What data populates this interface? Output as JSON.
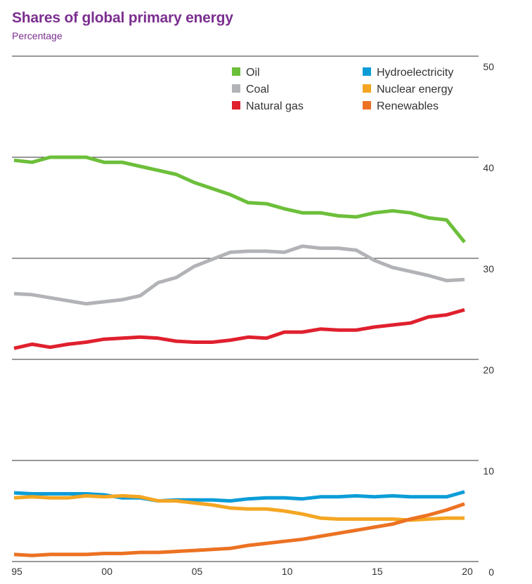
{
  "chart_data": {
    "type": "line",
    "title": "Shares of global primary energy",
    "subtitle": "Percentage",
    "xlabel": "",
    "ylabel": "",
    "ylim": [
      0,
      50
    ],
    "yticks": [
      0,
      10,
      20,
      30,
      40,
      50
    ],
    "xlim": [
      1995,
      2020
    ],
    "xticks": [
      {
        "value": 1995,
        "label": "95"
      },
      {
        "value": 2000,
        "label": "00"
      },
      {
        "value": 2005,
        "label": "05"
      },
      {
        "value": 2010,
        "label": "10"
      },
      {
        "value": 2015,
        "label": "15"
      },
      {
        "value": 2020,
        "label": "20"
      }
    ],
    "legend_position": "top-right",
    "x": [
      1995,
      1996,
      1997,
      1998,
      1999,
      2000,
      2001,
      2002,
      2003,
      2004,
      2005,
      2006,
      2007,
      2008,
      2009,
      2010,
      2011,
      2012,
      2013,
      2014,
      2015,
      2016,
      2017,
      2018,
      2019,
      2020
    ],
    "series": [
      {
        "name": "Oil",
        "color": "#6cbf3a",
        "values": [
          39.7,
          39.5,
          40.0,
          40.0,
          40.0,
          39.5,
          39.5,
          39.1,
          38.7,
          38.3,
          37.5,
          36.9,
          36.3,
          35.5,
          35.4,
          34.9,
          34.5,
          34.5,
          34.2,
          34.1,
          34.5,
          34.7,
          34.5,
          34.0,
          33.8,
          31.6
        ]
      },
      {
        "name": "Coal",
        "color": "#b1b3b6",
        "values": [
          26.5,
          26.4,
          26.1,
          25.8,
          25.5,
          25.7,
          25.9,
          26.3,
          27.6,
          28.1,
          29.2,
          29.9,
          30.6,
          30.7,
          30.7,
          30.6,
          31.2,
          31.0,
          31.0,
          30.8,
          29.8,
          29.1,
          28.7,
          28.3,
          27.8,
          27.9
        ]
      },
      {
        "name": "Natural gas",
        "color": "#e0202e",
        "values": [
          21.1,
          21.5,
          21.2,
          21.5,
          21.7,
          22.0,
          22.1,
          22.2,
          22.1,
          21.8,
          21.7,
          21.7,
          21.9,
          22.2,
          22.1,
          22.7,
          22.7,
          23.0,
          22.9,
          22.9,
          23.2,
          23.4,
          23.6,
          24.2,
          24.4,
          24.9
        ]
      },
      {
        "name": "Hydroelectricity",
        "color": "#0c9dd8",
        "values": [
          6.8,
          6.7,
          6.7,
          6.7,
          6.7,
          6.6,
          6.3,
          6.3,
          6.0,
          6.1,
          6.1,
          6.1,
          6.0,
          6.2,
          6.3,
          6.3,
          6.2,
          6.4,
          6.4,
          6.5,
          6.4,
          6.5,
          6.4,
          6.4,
          6.4,
          6.9
        ]
      },
      {
        "name": "Nuclear energy",
        "color": "#f4a623",
        "values": [
          6.3,
          6.4,
          6.3,
          6.3,
          6.5,
          6.4,
          6.5,
          6.4,
          6.0,
          6.0,
          5.8,
          5.6,
          5.3,
          5.2,
          5.2,
          5.0,
          4.7,
          4.3,
          4.2,
          4.2,
          4.2,
          4.2,
          4.1,
          4.2,
          4.3,
          4.3
        ]
      },
      {
        "name": "Renewables",
        "color": "#ec7223",
        "values": [
          0.7,
          0.6,
          0.7,
          0.7,
          0.7,
          0.8,
          0.8,
          0.9,
          0.9,
          1.0,
          1.1,
          1.2,
          1.3,
          1.6,
          1.8,
          2.0,
          2.2,
          2.5,
          2.8,
          3.1,
          3.4,
          3.7,
          4.2,
          4.6,
          5.1,
          5.7
        ]
      }
    ]
  }
}
